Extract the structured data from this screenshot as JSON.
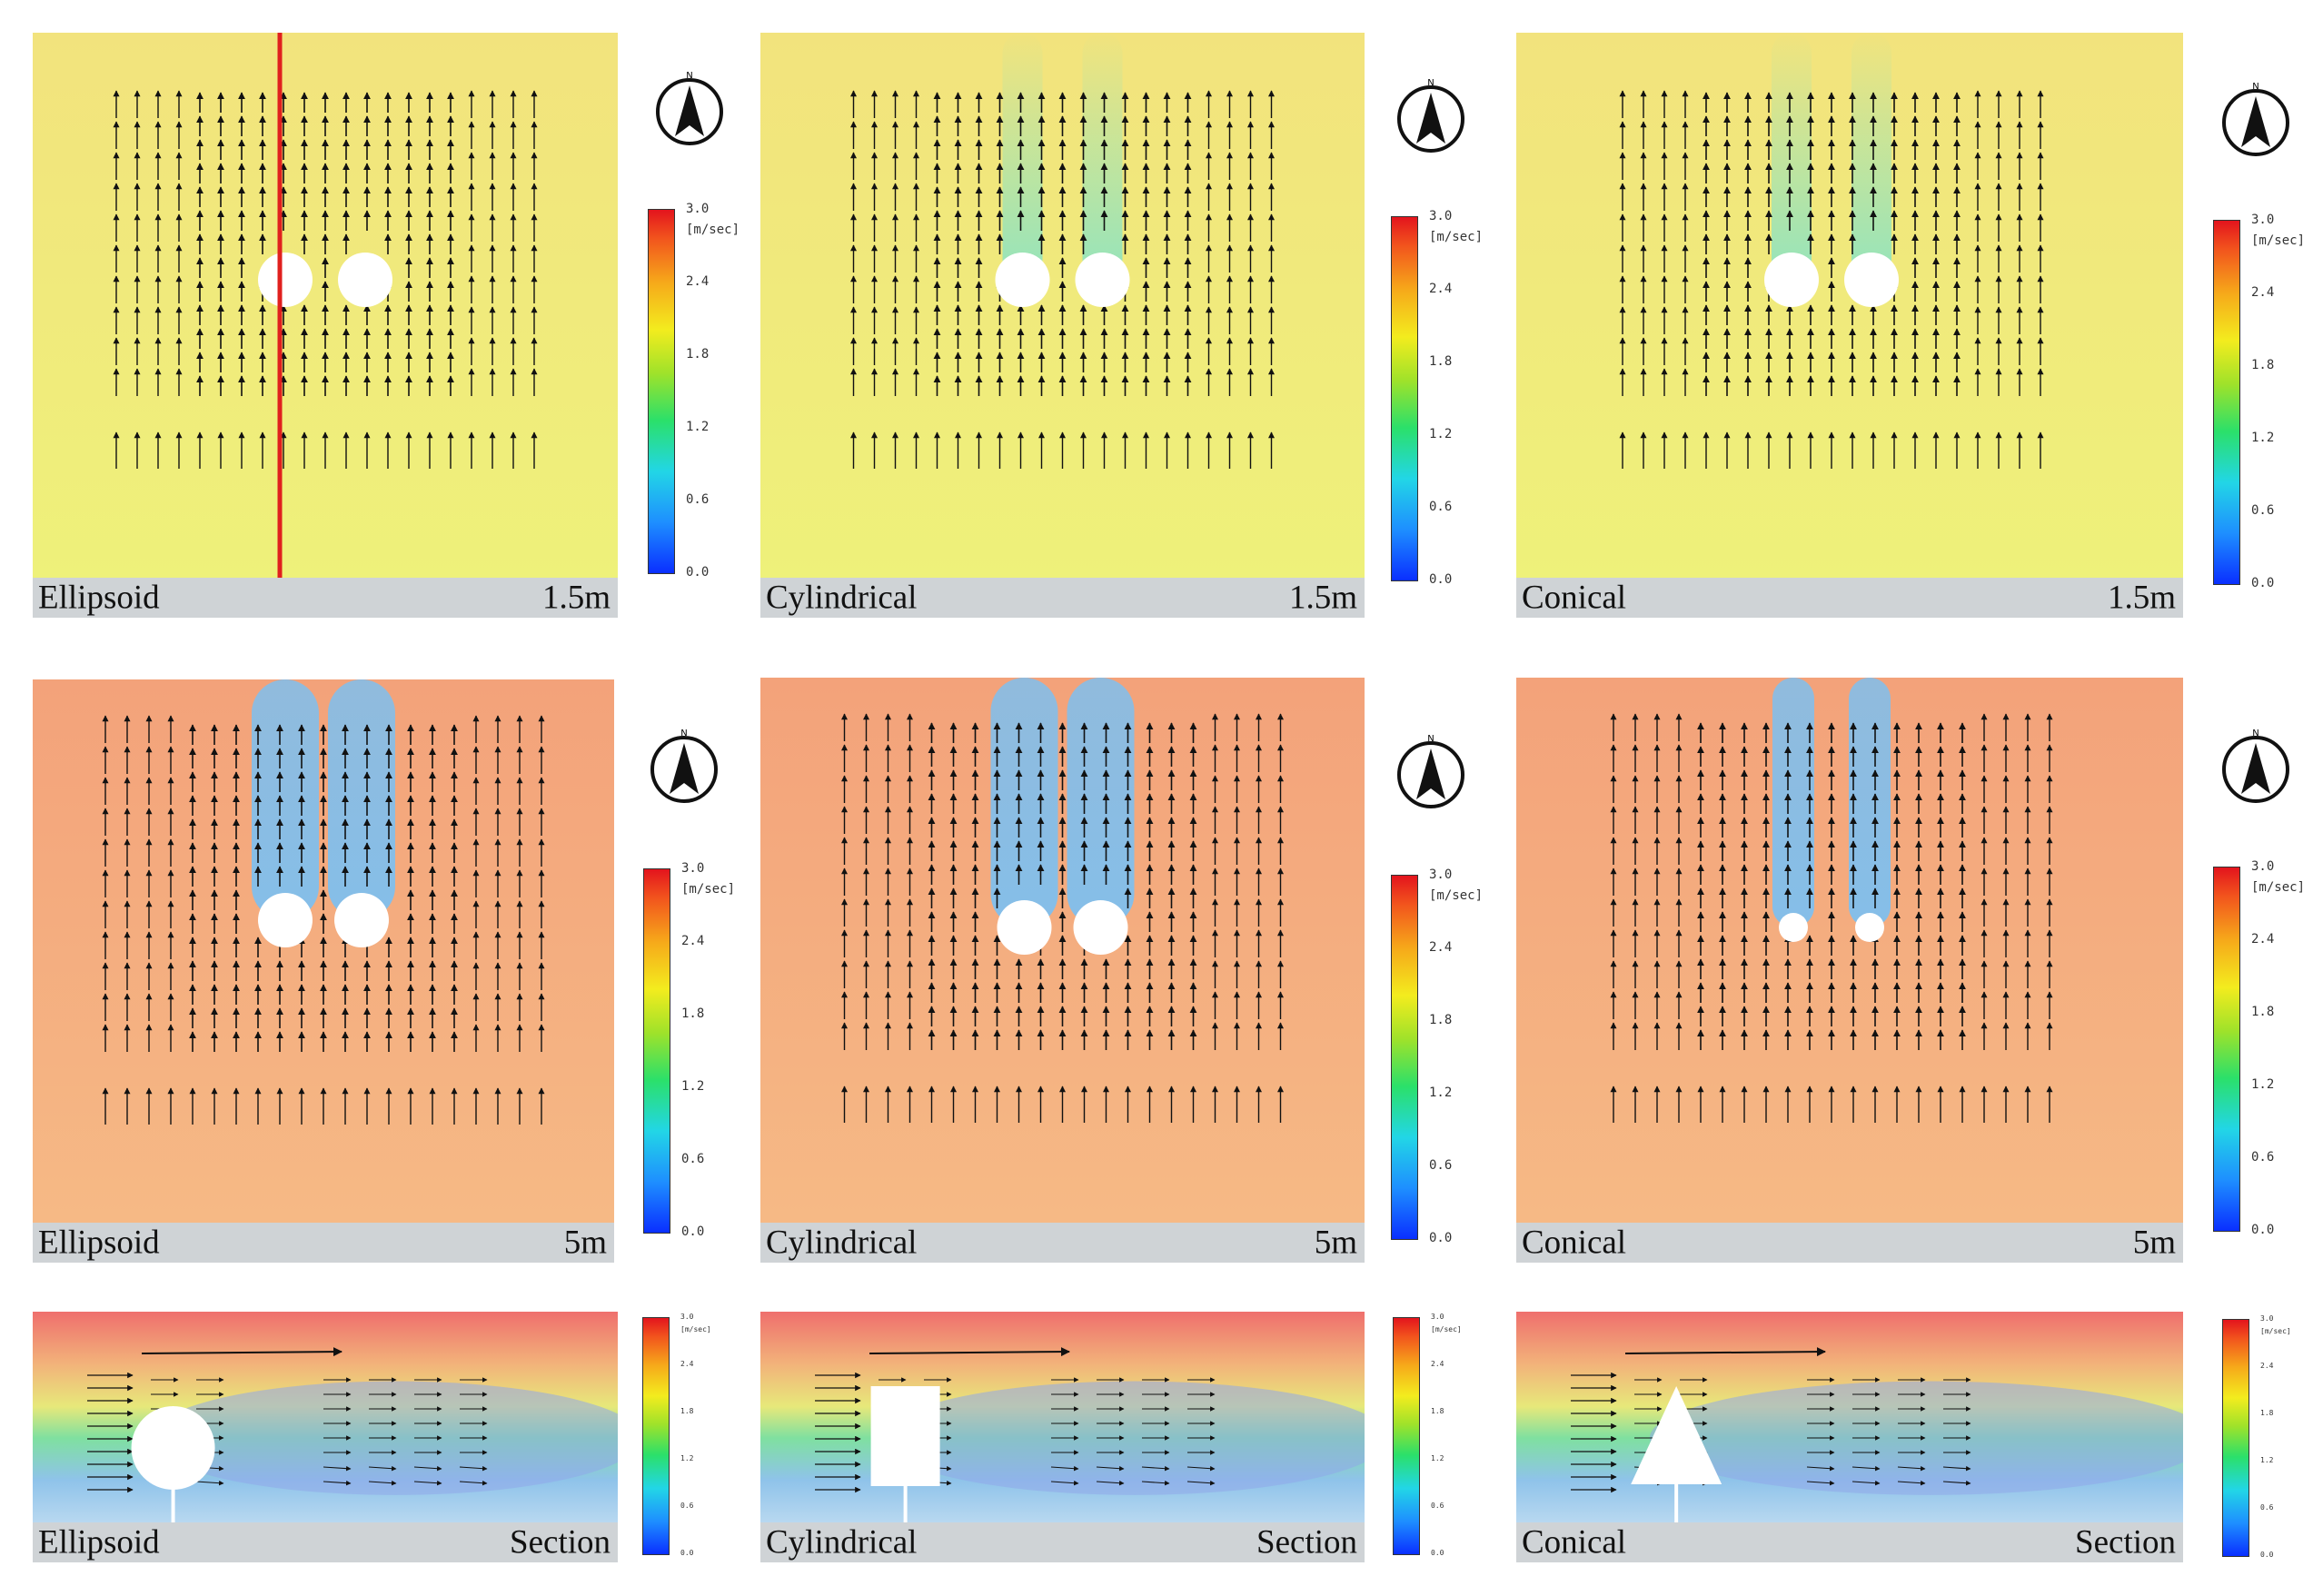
{
  "figure": {
    "title": "",
    "legend": {
      "unit": "[m/sec]",
      "ticks": [
        "3.0",
        "2.4",
        "1.8",
        "1.2",
        "0.6",
        "0.0"
      ],
      "range": [
        0,
        3.0
      ]
    },
    "compass_letter": "N",
    "colors": {
      "bg_15": "#f4ec7a",
      "bg_5": "#f6b88a",
      "section_top": "#ef6f6d",
      "wake": "#8fc8ea",
      "label_bar": "#cfd3d6",
      "section_line": "#e0201e"
    },
    "panels": [
      {
        "row": 0,
        "shape": "Ellipsoid",
        "height": "1.5m"
      },
      {
        "row": 0,
        "shape": "Cylindrical",
        "height": "1.5m"
      },
      {
        "row": 0,
        "shape": "Conical",
        "height": "1.5m"
      },
      {
        "row": 1,
        "shape": "Ellipsoid",
        "height": "5m"
      },
      {
        "row": 1,
        "shape": "Cylindrical",
        "height": "5m"
      },
      {
        "row": 1,
        "shape": "Conical",
        "height": "5m"
      },
      {
        "row": 2,
        "shape": "Ellipsoid",
        "height": "Section"
      },
      {
        "row": 2,
        "shape": "Cylindrical",
        "height": "Section"
      },
      {
        "row": 2,
        "shape": "Conical",
        "height": "Section"
      }
    ]
  }
}
